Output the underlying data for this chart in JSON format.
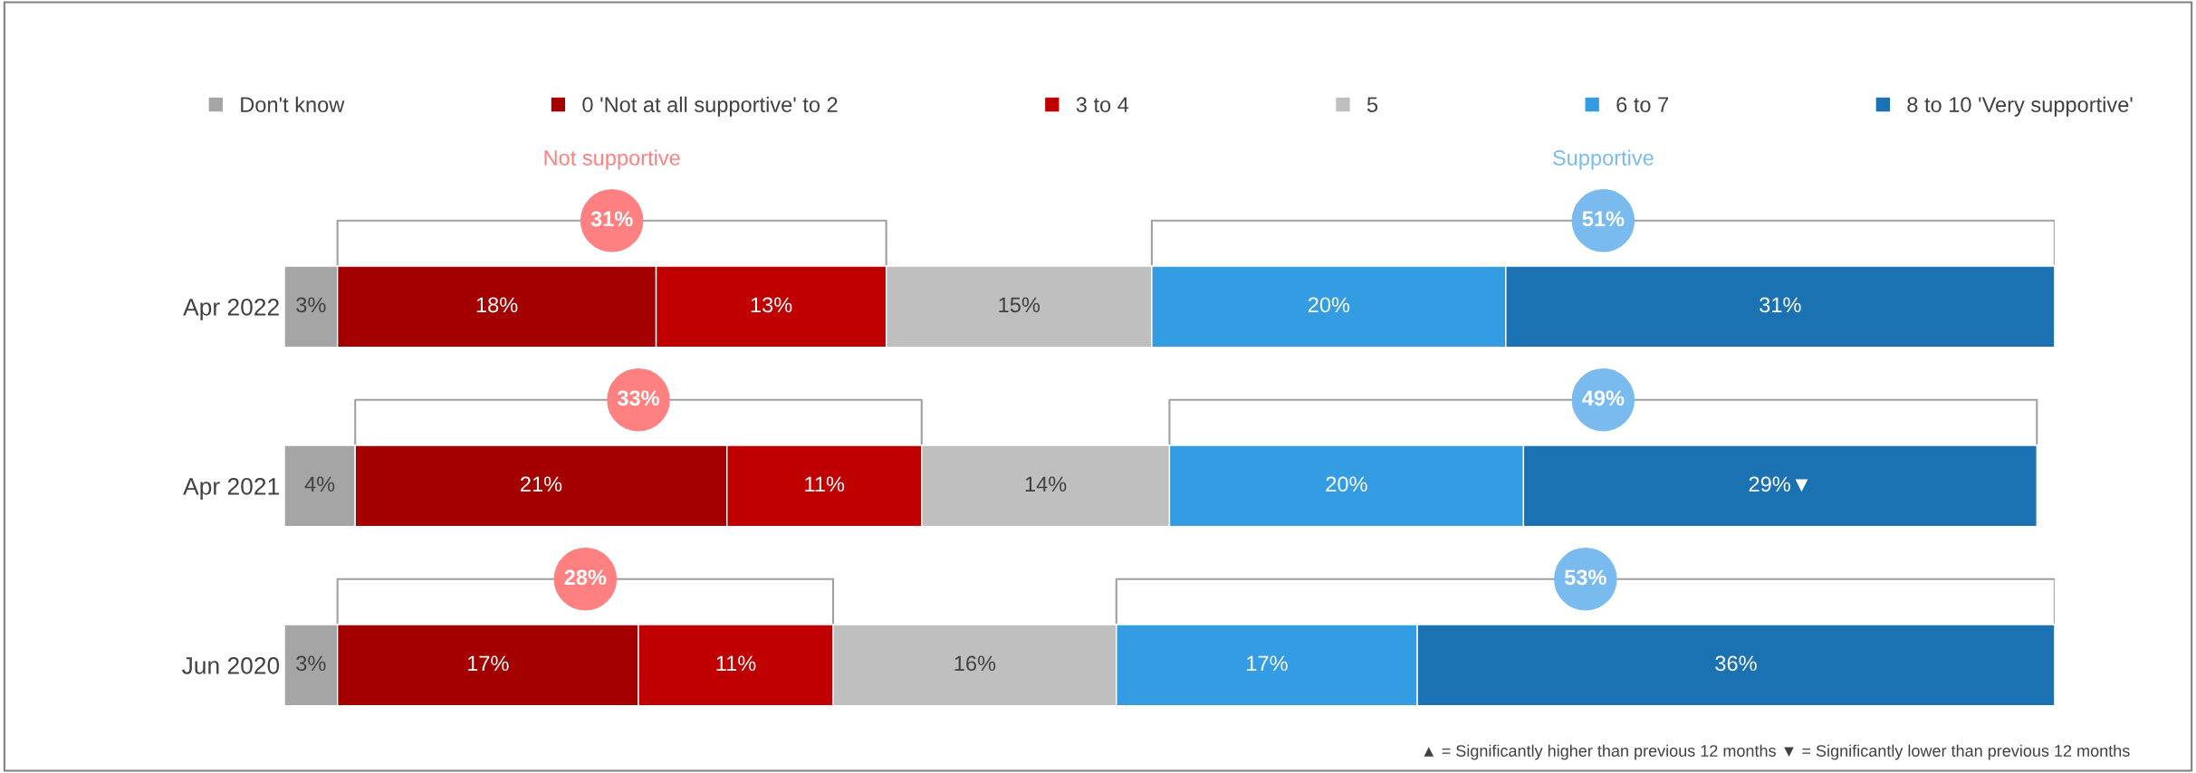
{
  "chart_data": {
    "type": "bar",
    "orientation": "horizontal",
    "stacked": true,
    "legend": "top",
    "grid": false,
    "tick_labels": "y",
    "categories": [
      "Apr 2022",
      "Apr 2021",
      "Jun 2020"
    ],
    "series": [
      {
        "name": "Don't know",
        "color": "#a5a5a5",
        "values": [
          3,
          4,
          3
        ],
        "value_labels": [
          "3%",
          "4%",
          "3%"
        ]
      },
      {
        "name": "0 'Not at all supportive' to 2",
        "color": "#a50000",
        "values": [
          18,
          21,
          17
        ],
        "value_labels": [
          "18%",
          "21%",
          "17%"
        ]
      },
      {
        "name": "3 to 4",
        "color": "#c00000",
        "values": [
          13,
          11,
          11
        ],
        "value_labels": [
          "13%",
          "11%",
          "11%"
        ]
      },
      {
        "name": "5",
        "color": "#bfbfbf",
        "values": [
          15,
          14,
          16
        ],
        "value_labels": [
          "15%",
          "14%",
          "16%"
        ]
      },
      {
        "name": "6 to 7",
        "color": "#339ce3",
        "values": [
          20,
          20,
          17
        ],
        "value_labels": [
          "20%",
          "20%",
          "17%"
        ]
      },
      {
        "name": "8 to 10 'Very supportive'",
        "color": "#1a72b3",
        "values": [
          31,
          29,
          36
        ],
        "value_labels": [
          "31%",
          "29%▼",
          "36%"
        ]
      }
    ],
    "annotations": [
      "Not supportive",
      "Supportive",
      "31%",
      "51%",
      "33%",
      "49%",
      "28%",
      "53%",
      "▲ = Significantly higher than previous 12 months ▼ = Significantly lower than previous 12 months"
    ]
  }
}
